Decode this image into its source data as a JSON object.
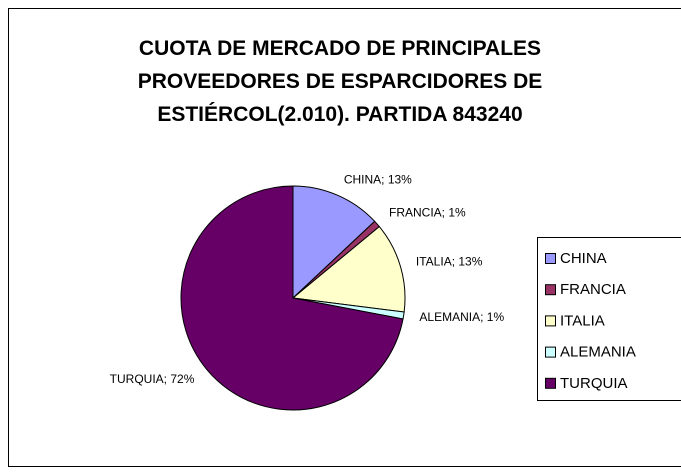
{
  "chart_data": {
    "type": "pie",
    "title": "CUOTA DE MERCADO DE PRINCIPALES PROVEEDORES DE ESPARCIDORES DE ESTIÉRCOL(2.010). PARTIDA 843240",
    "categories": [
      "CHINA",
      "FRANCIA",
      "ITALIA",
      "ALEMANIA",
      "TURQUIA"
    ],
    "values": [
      13,
      1,
      13,
      1,
      72
    ],
    "value_labels": [
      "CHINA; 13%",
      "FRANCIA; 1%",
      "ITALIA; 13%",
      "ALEMANIA; 1%",
      "TURQUIA; 72%"
    ],
    "colors": [
      "#9999ff",
      "#993366",
      "#ffffcc",
      "#ccffff",
      "#660066"
    ],
    "legend": "right"
  }
}
